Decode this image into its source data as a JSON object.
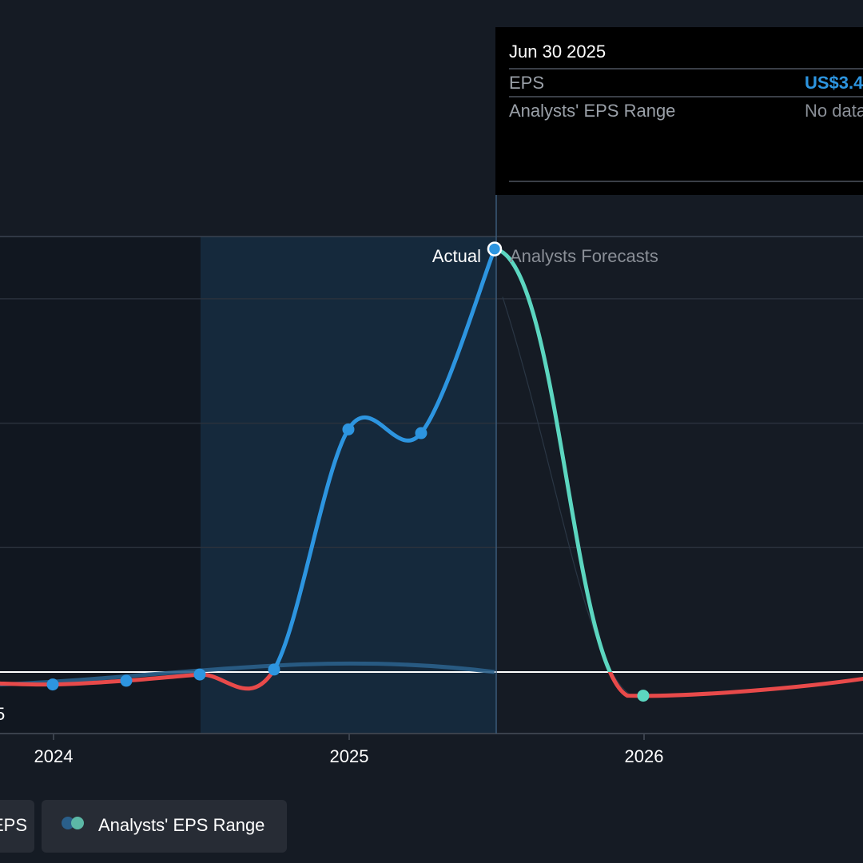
{
  "tooltip": {
    "date": "Jun 30 2025",
    "rows": [
      {
        "label": "EPS",
        "value": "US$3.4",
        "color": "#2d95e0"
      },
      {
        "label": "Analysts' EPS Range",
        "value": "No data",
        "color": "#8a8f97"
      }
    ]
  },
  "labels": {
    "actual": "Actual",
    "forecast": "Analysts Forecasts",
    "y_clipped_tick": "5"
  },
  "legend": [
    {
      "label": "EPS",
      "icon": "eps-dot-icon"
    },
    {
      "label": "Analysts' EPS Range",
      "icon": "range-dots-icon"
    }
  ],
  "colors": {
    "actual": "#2d95e0",
    "forecast": "#5cd6c0",
    "negative": "#e84a4a",
    "range": "#2a5f8a"
  },
  "chart_data": {
    "type": "line",
    "title": "",
    "xlabel": "",
    "ylabel": "",
    "x_ticks": [
      "2024",
      "2025",
      "2026"
    ],
    "ylim": [
      -0.5,
      3.6
    ],
    "grid": true,
    "series": [
      {
        "name": "Actual",
        "x": [
          "2023-12-31",
          "2024-03-31",
          "2024-06-30",
          "2024-09-30",
          "2024-12-31",
          "2025-03-31",
          "2025-06-30"
        ],
        "values": [
          -0.1,
          -0.07,
          -0.02,
          0.02,
          1.95,
          1.92,
          3.4
        ]
      },
      {
        "name": "Analysts Forecasts",
        "x": [
          "2025-06-30",
          "2025-12-31"
        ],
        "values": [
          3.4,
          -0.19
        ]
      }
    ]
  }
}
